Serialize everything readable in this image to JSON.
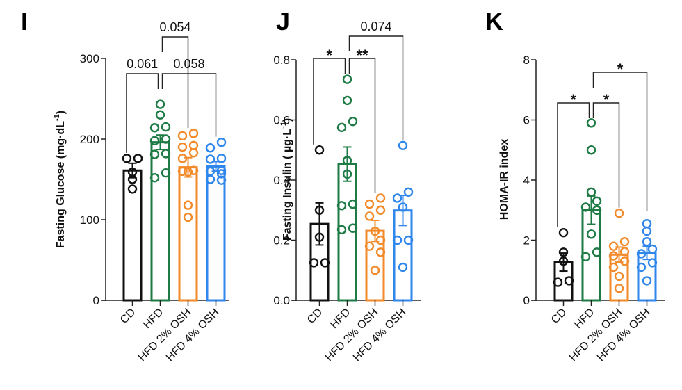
{
  "colors": {
    "CD": "#111111",
    "HFD": "#1e7b45",
    "HFD 2% OSH": "#f28a2a",
    "HFD 4% OSH": "#2f86eb",
    "axis": "#222222"
  },
  "chart_data": [
    {
      "panel": "I",
      "type": "bar",
      "title": "",
      "xlabel": "",
      "ylabel": "Fasting Glucose (mg·dL⁻¹)",
      "ylabel_main": "Fasting Glucose (mg·dL",
      "ylabel_sup": "-1",
      "ylabel_end": ")",
      "ylim": [
        0,
        300
      ],
      "yticks": [
        0,
        100,
        200,
        300
      ],
      "ytick_labels": [
        "0",
        "100",
        "200",
        "300"
      ],
      "categories": [
        "CD",
        "HFD",
        "HFD 2% OSH",
        "HFD 4% OSH"
      ],
      "values": [
        161,
        196,
        165,
        166
      ],
      "sem": [
        9,
        9,
        12,
        6
      ],
      "points": [
        [
          176,
          176,
          159,
          150,
          138
        ],
        [
          243,
          230,
          215,
          214,
          200,
          198,
          182,
          181,
          158,
          152
        ],
        [
          207,
          204,
          192,
          190,
          183,
          176,
          161,
          160,
          159,
          118,
          103
        ],
        [
          196,
          189,
          176,
          175,
          161,
          160,
          157,
          150,
          149
        ]
      ],
      "annotations": [
        {
          "from": 0,
          "to": 1,
          "label": "0.061",
          "level": 1
        },
        {
          "from": 1,
          "to": 3,
          "label": "0.058",
          "level": 1
        },
        {
          "from": 1,
          "to": 2,
          "label": "0.054",
          "level": 2
        }
      ]
    },
    {
      "panel": "J",
      "type": "bar",
      "title": "",
      "xlabel": "",
      "ylabel": "Fasting Insulin ( µg·L⁻¹)",
      "ylabel_main": "Fasting Insulin ( µg·L",
      "ylabel_sup": "-1",
      "ylabel_end": ")",
      "ylim": [
        0,
        0.8
      ],
      "yticks": [
        0,
        0.2,
        0.4,
        0.6,
        0.8
      ],
      "ytick_labels": [
        "0.0",
        "0.2",
        "0.4",
        "0.6",
        "0.8"
      ],
      "categories": [
        "CD",
        "HFD",
        "HFD 2% OSH",
        "HFD 4% OSH"
      ],
      "values": [
        0.254,
        0.453,
        0.231,
        0.299
      ],
      "sem": [
        0.07,
        0.057,
        0.035,
        0.05
      ],
      "points": [
        [
          0.5,
          0.3,
          0.21,
          0.125,
          0.125
        ],
        [
          0.735,
          0.665,
          0.595,
          0.575,
          0.465,
          0.42,
          0.32,
          0.315,
          0.24,
          0.235
        ],
        [
          0.34,
          0.32,
          0.3,
          0.28,
          0.23,
          0.2,
          0.18,
          0.16,
          0.1
        ],
        [
          0.515,
          0.36,
          0.34,
          0.31,
          0.2,
          0.2,
          0.11
        ]
      ],
      "annotations": [
        {
          "from": 0,
          "to": 1,
          "label": "*",
          "level": 1
        },
        {
          "from": 1,
          "to": 2,
          "label": "**",
          "level": 1
        },
        {
          "from": 1,
          "to": 3,
          "label": "0.074",
          "level": 2
        }
      ]
    },
    {
      "panel": "K",
      "type": "bar",
      "title": "",
      "xlabel": "",
      "ylabel": "HOMA-IR index",
      "ylabel_main": "HOMA-IR index",
      "ylabel_sup": "",
      "ylabel_end": "",
      "ylim": [
        0,
        8
      ],
      "yticks": [
        0,
        2,
        4,
        6,
        8
      ],
      "ytick_labels": [
        "0",
        "2",
        "4",
        "6",
        "8"
      ],
      "categories": [
        "CD",
        "HFD",
        "HFD 2% OSH",
        "HFD 4% OSH"
      ],
      "values": [
        1.27,
        3.0,
        1.52,
        1.58
      ],
      "sem": [
        0.3,
        0.47,
        0.25,
        0.22
      ],
      "points": [
        [
          2.25,
          1.6,
          1.3,
          0.65,
          0.6
        ],
        [
          5.9,
          5.0,
          3.6,
          3.3,
          3.1,
          3.0,
          2.2,
          1.6,
          1.45
        ],
        [
          2.9,
          1.95,
          1.8,
          1.62,
          1.48,
          1.3,
          1.1,
          0.8,
          0.4
        ],
        [
          2.55,
          2.3,
          1.95,
          1.7,
          1.55,
          1.25,
          1.1,
          0.65
        ]
      ],
      "annotations": [
        {
          "from": 0,
          "to": 1,
          "label": "*",
          "level": 1
        },
        {
          "from": 1,
          "to": 2,
          "label": "*",
          "level": 1
        },
        {
          "from": 1,
          "to": 3,
          "label": "*",
          "level": 2
        }
      ]
    }
  ]
}
